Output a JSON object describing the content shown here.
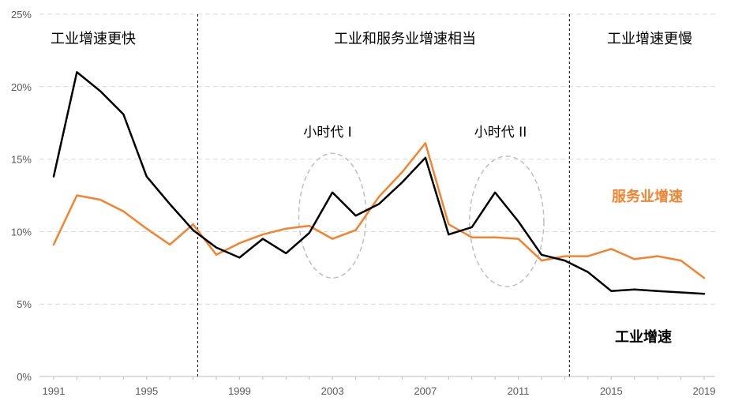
{
  "chart_data": {
    "type": "line",
    "title": "",
    "xlabel": "",
    "ylabel": "",
    "x": [
      1991,
      1992,
      1993,
      1994,
      1995,
      1996,
      1997,
      1998,
      1999,
      2000,
      2001,
      2002,
      2003,
      2004,
      2005,
      2006,
      2007,
      2008,
      2009,
      2010,
      2011,
      2012,
      2013,
      2014,
      2015,
      2016,
      2017,
      2018,
      2019
    ],
    "xlim": [
      1991,
      2019
    ],
    "ylim": [
      0,
      25
    ],
    "y_ticks": [
      "0%",
      "5%",
      "10%",
      "15%",
      "20%",
      "25%"
    ],
    "y_tick_values": [
      0,
      5,
      10,
      15,
      20,
      25
    ],
    "x_ticks": [
      "1991",
      "1995",
      "1999",
      "2003",
      "2007",
      "2011",
      "2015",
      "2019"
    ],
    "x_tick_values": [
      1991,
      1995,
      1999,
      2003,
      2007,
      2011,
      2015,
      2019
    ],
    "grid": true,
    "series": [
      {
        "name": "工业增速",
        "color": "#000000",
        "values": [
          13.8,
          21.0,
          19.7,
          18.1,
          13.8,
          11.9,
          10.1,
          8.9,
          8.2,
          9.5,
          8.5,
          9.9,
          12.7,
          11.1,
          11.9,
          13.4,
          15.1,
          9.8,
          10.3,
          12.7,
          10.7,
          8.4,
          8.0,
          7.2,
          5.9,
          6.0,
          5.9,
          5.8,
          5.7
        ]
      },
      {
        "name": "服务业增速",
        "color": "#F28430",
        "values": [
          9.1,
          12.5,
          12.2,
          11.4,
          10.2,
          9.1,
          10.5,
          8.4,
          9.2,
          9.8,
          10.2,
          10.4,
          9.5,
          10.1,
          12.4,
          14.1,
          16.1,
          10.5,
          9.6,
          9.6,
          9.5,
          8.0,
          8.3,
          8.3,
          8.8,
          8.1,
          8.3,
          8.0,
          6.8
        ]
      }
    ],
    "dividers": [
      1997.2,
      2013.2
    ],
    "regions": [
      {
        "label": "工业增速更快"
      },
      {
        "label": "工业和服务业增速相当"
      },
      {
        "label": "工业增速更慢"
      }
    ],
    "eras": [
      {
        "label": "小时代 I",
        "center_year": 2003,
        "center_value": 11.1,
        "half_width_years": 1.45,
        "half_height_value": 4.3
      },
      {
        "label": "小时代 II",
        "center_year": 2010.5,
        "center_value": 10.7,
        "half_width_years": 1.6,
        "half_height_value": 4.5
      }
    ],
    "series_labels": [
      {
        "series": "服务业增速",
        "label": "服务业增速"
      },
      {
        "series": "工业增速",
        "label": "工业增速"
      }
    ]
  }
}
